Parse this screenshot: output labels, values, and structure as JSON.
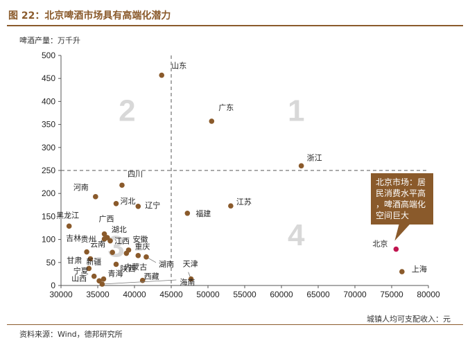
{
  "figure": {
    "title": "图 22：北京啤酒市场具有高端化潜力",
    "source": "资料来源：Wind，德邦研究所"
  },
  "colors": {
    "title": "#8a5a2b",
    "point": "#8a5a2b",
    "highlight_point": "#c0154f",
    "callout_bg": "#8a5a2b",
    "quadrant_number": "#d8d8d8",
    "dashed_line": "#555555"
  },
  "chart_data": {
    "type": "scatter",
    "title": "",
    "xlabel": "城镇人均可支配收入：元",
    "ylabel": "啤酒产量：万千升",
    "xlim": [
      30000,
      80000
    ],
    "ylim": [
      0,
      500
    ],
    "x_ticks": [
      30000,
      35000,
      40000,
      45000,
      50000,
      55000,
      60000,
      65000,
      70000,
      75000,
      80000
    ],
    "y_ticks": [
      0,
      50,
      100,
      150,
      200,
      250,
      300,
      350,
      400,
      450,
      500
    ],
    "grid": false,
    "reference_lines": {
      "x": 45000,
      "y": 250
    },
    "quadrant_labels": [
      "1",
      "2",
      "3",
      "4"
    ],
    "points": [
      {
        "label": "山东",
        "x": 43700,
        "y": 457
      },
      {
        "label": "广东",
        "x": 50500,
        "y": 357
      },
      {
        "label": "浙江",
        "x": 62700,
        "y": 260
      },
      {
        "label": "四川",
        "x": 38300,
        "y": 218
      },
      {
        "label": "河南",
        "x": 34700,
        "y": 193
      },
      {
        "label": "河北",
        "x": 37500,
        "y": 178
      },
      {
        "label": "辽宁",
        "x": 40500,
        "y": 172
      },
      {
        "label": "江苏",
        "x": 53100,
        "y": 173
      },
      {
        "label": "福建",
        "x": 47200,
        "y": 157
      },
      {
        "label": "黑龙江",
        "x": 31100,
        "y": 129
      },
      {
        "label": "广西",
        "x": 35900,
        "y": 112
      },
      {
        "label": "湖北",
        "x": 36300,
        "y": 104
      },
      {
        "label": "贵州",
        "x": 35900,
        "y": 101
      },
      {
        "label": "江西",
        "x": 36700,
        "y": 97
      },
      {
        "label": "吉林",
        "x": 33500,
        "y": 73
      },
      {
        "label": "云南",
        "x": 37000,
        "y": 72
      },
      {
        "label": "安徽",
        "x": 39200,
        "y": 77
      },
      {
        "label": "重庆",
        "x": 38900,
        "y": 70
      },
      {
        "label": "内蒙古",
        "x": 40500,
        "y": 65
      },
      {
        "label": "湖南",
        "x": 41600,
        "y": 62
      },
      {
        "label": "新疆",
        "x": 34000,
        "y": 58
      },
      {
        "label": "陕西",
        "x": 37500,
        "y": 46
      },
      {
        "label": "甘肃",
        "x": 33800,
        "y": 37
      },
      {
        "label": "宁夏",
        "x": 34500,
        "y": 20
      },
      {
        "label": "青海",
        "x": 35800,
        "y": 14
      },
      {
        "label": "山西",
        "x": 35200,
        "y": 10
      },
      {
        "label": "西藏",
        "x": 41100,
        "y": 11
      },
      {
        "label": "天津",
        "x": 47700,
        "y": 14
      },
      {
        "label": "海南",
        "x": 35600,
        "y": 3
      },
      {
        "label": "北京",
        "x": 75600,
        "y": 79
      },
      {
        "label": "上海",
        "x": 76400,
        "y": 30
      }
    ],
    "highlight": "北京",
    "annotation": "北京市场：居民消费水平高，啤酒高端化空间巨大"
  }
}
